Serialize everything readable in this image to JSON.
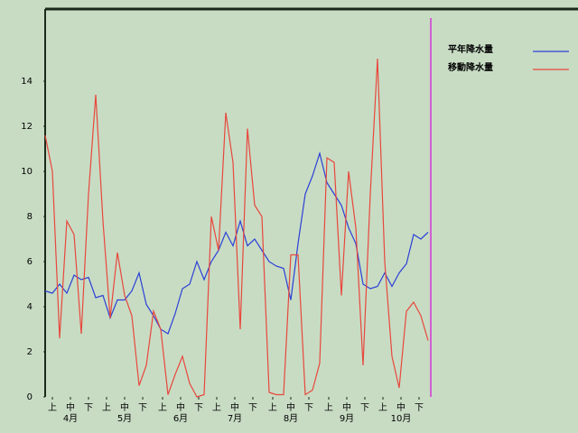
{
  "chart_data": {
    "type": "line",
    "x": [
      0,
      4,
      8,
      12,
      16,
      20,
      24,
      28,
      32,
      36,
      40,
      44,
      48,
      52,
      56,
      60,
      64,
      68,
      72,
      76,
      80,
      84,
      88,
      92,
      96,
      100,
      104,
      108,
      112,
      116,
      120,
      124,
      128,
      132,
      136,
      140,
      144,
      148,
      152,
      156,
      160,
      164,
      168,
      172,
      176,
      180,
      184,
      188,
      192,
      196,
      200,
      204,
      208,
      212
    ],
    "series": [
      {
        "name": "平年降水量",
        "color": "#2b3fd6",
        "values": [
          4.7,
          4.6,
          5.0,
          4.6,
          5.4,
          5.2,
          5.3,
          4.4,
          4.5,
          3.5,
          4.3,
          4.3,
          4.7,
          5.5,
          4.1,
          3.6,
          3.0,
          2.8,
          3.7,
          4.8,
          5.0,
          6.0,
          5.2,
          6.0,
          6.5,
          7.3,
          6.7,
          7.8,
          6.7,
          7.0,
          6.5,
          6.0,
          5.8,
          5.7,
          4.3,
          6.8,
          9.0,
          9.8,
          10.8,
          9.5,
          9.0,
          8.5,
          7.5,
          6.8,
          5.0,
          4.8,
          4.9,
          5.5,
          4.9,
          5.5,
          5.9,
          7.2,
          7.0,
          7.3
        ]
      },
      {
        "name": "移動降水量",
        "color": "#e8473c",
        "values": [
          11.6,
          10.0,
          2.6,
          7.8,
          7.2,
          2.8,
          9.0,
          13.4,
          7.8,
          3.5,
          6.4,
          4.5,
          3.6,
          0.5,
          1.4,
          3.8,
          3.0,
          0.1,
          1.0,
          1.8,
          0.6,
          0.0,
          0.1,
          8.0,
          6.5,
          12.6,
          10.4,
          3.0,
          11.9,
          8.5,
          8.0,
          0.2,
          0.1,
          0.1,
          6.3,
          6.3,
          0.1,
          0.3,
          1.5,
          10.6,
          10.4,
          4.5,
          10.0,
          7.5,
          1.4,
          9.0,
          15.0,
          6.0,
          1.8,
          0.4,
          3.8,
          4.2,
          3.6,
          2.5
        ]
      }
    ],
    "xlim": [
      0,
      214
    ],
    "ylim": [
      0,
      17.2
    ],
    "yticks": [
      0,
      2,
      4,
      6,
      8,
      10,
      12,
      14
    ],
    "xticks": [
      {
        "value": 4,
        "label": "上"
      },
      {
        "value": 14,
        "label": "中"
      },
      {
        "value": 24,
        "label": "下"
      },
      {
        "value": 34,
        "label": "上"
      },
      {
        "value": 44,
        "label": "中"
      },
      {
        "value": 54,
        "label": "下"
      },
      {
        "value": 65,
        "label": "上"
      },
      {
        "value": 75,
        "label": "中"
      },
      {
        "value": 85,
        "label": "下"
      },
      {
        "value": 95,
        "label": "上"
      },
      {
        "value": 105,
        "label": "中"
      },
      {
        "value": 115,
        "label": "下"
      },
      {
        "value": 126,
        "label": "上"
      },
      {
        "value": 136,
        "label": "中"
      },
      {
        "value": 146,
        "label": "下"
      },
      {
        "value": 157,
        "label": "上"
      },
      {
        "value": 167,
        "label": "中"
      },
      {
        "value": 177,
        "label": "下"
      },
      {
        "value": 187,
        "label": "上"
      },
      {
        "value": 197,
        "label": "中"
      },
      {
        "value": 207,
        "label": "下"
      }
    ],
    "month_ticks": [
      {
        "value": 14,
        "label": "4月"
      },
      {
        "value": 44,
        "label": "5月"
      },
      {
        "value": 75,
        "label": "6月"
      },
      {
        "value": 105,
        "label": "7月"
      },
      {
        "value": 136,
        "label": "8月"
      },
      {
        "value": 167,
        "label": "9月"
      },
      {
        "value": 197,
        "label": "10月"
      }
    ],
    "grid": false,
    "legend": "top-right"
  }
}
